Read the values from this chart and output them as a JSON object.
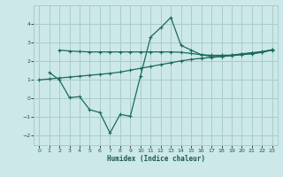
{
  "xlabel": "Humidex (Indice chaleur)",
  "bg_color": "#cce8e8",
  "grid_color": "#aacccc",
  "line_color": "#1a6b5a",
  "line1_x": [
    2,
    3,
    4,
    5,
    6,
    7,
    8,
    9,
    10,
    11,
    12,
    13,
    14,
    15,
    16,
    17,
    18,
    19,
    20,
    21,
    22,
    23
  ],
  "line1_y": [
    2.6,
    2.55,
    2.52,
    2.5,
    2.5,
    2.5,
    2.5,
    2.5,
    2.5,
    2.5,
    2.5,
    2.5,
    2.48,
    2.42,
    2.35,
    2.32,
    2.32,
    2.33,
    2.38,
    2.42,
    2.48,
    2.6
  ],
  "line2_x": [
    0,
    1,
    2,
    3,
    4,
    5,
    6,
    7,
    8,
    9,
    10,
    11,
    12,
    13,
    14,
    15,
    16,
    17,
    18,
    19,
    20,
    21,
    22,
    23
  ],
  "line2_y": [
    1.0,
    1.05,
    1.1,
    1.15,
    1.2,
    1.25,
    1.3,
    1.35,
    1.42,
    1.52,
    1.62,
    1.72,
    1.82,
    1.92,
    2.02,
    2.1,
    2.16,
    2.2,
    2.26,
    2.32,
    2.4,
    2.46,
    2.52,
    2.62
  ],
  "line3_x": [
    1,
    2,
    3,
    4,
    5,
    6,
    7,
    8,
    9,
    10,
    11,
    12,
    13,
    14,
    15,
    16,
    17,
    18,
    19,
    20,
    21,
    22,
    23
  ],
  "line3_y": [
    1.4,
    1.0,
    0.05,
    0.1,
    -0.6,
    -0.75,
    -1.85,
    -0.85,
    -0.95,
    1.2,
    3.3,
    3.8,
    4.35,
    2.85,
    2.6,
    2.35,
    2.25,
    2.25,
    2.3,
    2.35,
    2.4,
    2.48,
    2.62
  ],
  "ylim": [
    -2.5,
    5.0
  ],
  "xlim": [
    -0.5,
    23.5
  ],
  "yticks": [
    -2,
    -1,
    0,
    1,
    2,
    3,
    4
  ],
  "xticks": [
    0,
    1,
    2,
    3,
    4,
    5,
    6,
    7,
    8,
    9,
    10,
    11,
    12,
    13,
    14,
    15,
    16,
    17,
    18,
    19,
    20,
    21,
    22,
    23
  ]
}
